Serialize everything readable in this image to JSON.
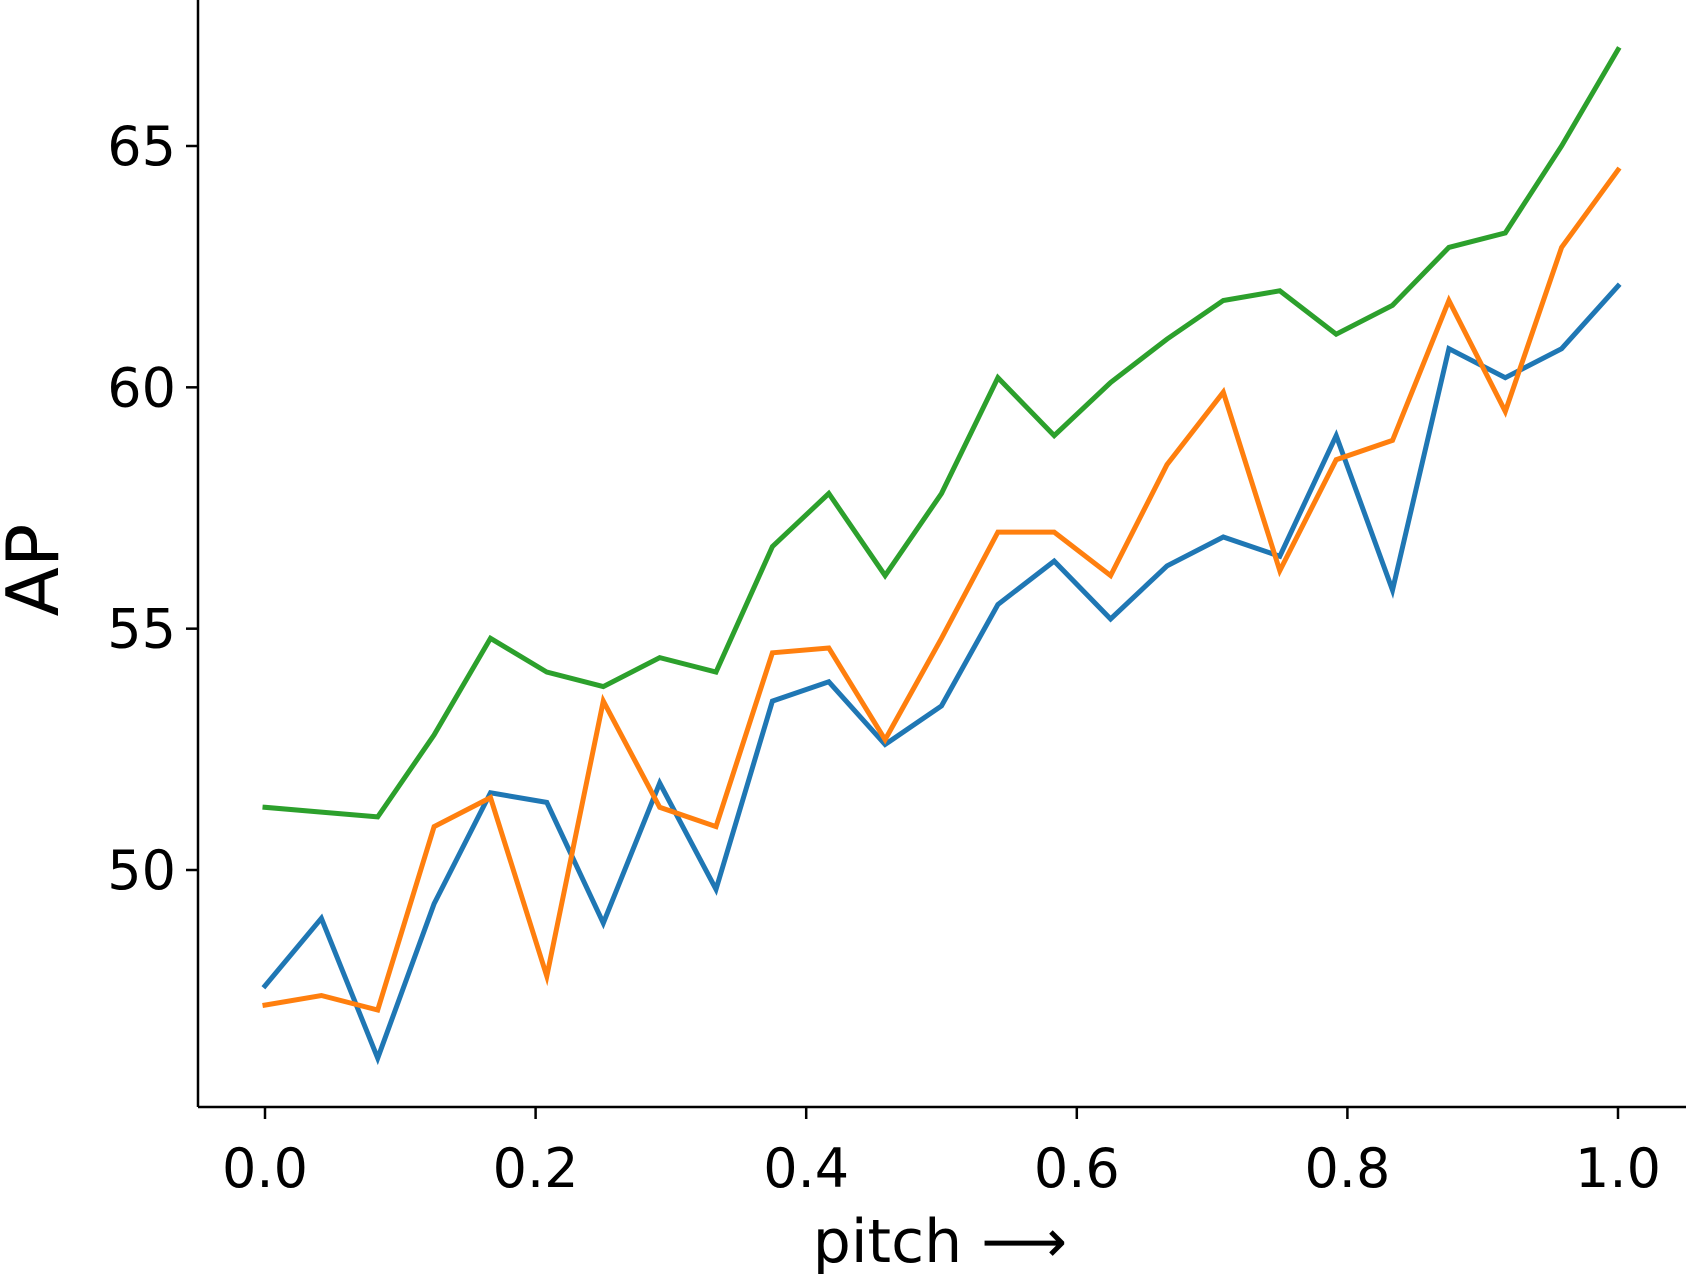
{
  "chart_data": {
    "type": "line",
    "title": "",
    "xlabel": "pitch ⟶",
    "ylabel": "AP",
    "xlim": [
      -0.05,
      1.05
    ],
    "ylim": [
      45.5,
      68.0
    ],
    "x_ticks": [
      0.0,
      0.2,
      0.4,
      0.6,
      0.8,
      1.0
    ],
    "x_tick_labels": [
      "0.0",
      "0.2",
      "0.4",
      "0.6",
      "0.8",
      "1.0"
    ],
    "y_ticks": [
      50,
      55,
      60,
      65
    ],
    "y_tick_labels": [
      "50",
      "55",
      "60",
      "65"
    ],
    "grid": false,
    "legend": "none",
    "x": [
      0.0,
      0.0417,
      0.0833,
      0.125,
      0.1667,
      0.2083,
      0.25,
      0.2917,
      0.3333,
      0.375,
      0.4167,
      0.4583,
      0.5,
      0.5417,
      0.5833,
      0.625,
      0.6667,
      0.7083,
      0.75,
      0.7917,
      0.8333,
      0.875,
      0.9167,
      0.9583,
      1.0
    ],
    "series": [
      {
        "color": "#1f77b4",
        "values": [
          47.6,
          49.0,
          46.1,
          49.3,
          51.6,
          51.4,
          48.9,
          51.8,
          49.6,
          53.5,
          53.9,
          52.6,
          53.4,
          55.5,
          56.4,
          55.2,
          56.3,
          56.9,
          56.5,
          59.0,
          55.8,
          60.8,
          60.2,
          60.8,
          62.1
        ]
      },
      {
        "color": "#ff7f0e",
        "values": [
          47.2,
          47.4,
          47.1,
          50.9,
          51.5,
          47.8,
          53.5,
          51.3,
          50.9,
          54.5,
          54.6,
          52.7,
          54.8,
          57.0,
          57.0,
          56.1,
          58.4,
          59.9,
          56.2,
          58.5,
          58.9,
          61.8,
          59.5,
          62.9,
          64.5
        ]
      },
      {
        "color": "#2ca02c",
        "values": [
          51.3,
          51.2,
          51.1,
          52.8,
          54.8,
          54.1,
          53.8,
          54.4,
          54.1,
          56.7,
          57.8,
          56.1,
          57.8,
          60.2,
          59.0,
          60.1,
          61.0,
          61.8,
          62.0,
          61.1,
          61.7,
          62.9,
          63.2,
          65.0,
          67.0
        ]
      }
    ]
  }
}
